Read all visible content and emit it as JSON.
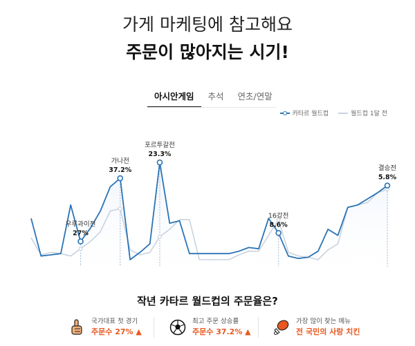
{
  "headline": {
    "line1": "가게 마케팅에 참고해요",
    "line2": "주문이 많아지는 시기!"
  },
  "tabs": [
    {
      "label": "아시안게임",
      "active": true
    },
    {
      "label": "추석",
      "active": false
    },
    {
      "label": "연초/연말",
      "active": false
    }
  ],
  "legend": {
    "current": "카타르 월드컵",
    "previous": "월드컵 1달 전"
  },
  "colors": {
    "current_line": "#2a73b5",
    "previous_line": "#c9d3e0",
    "area_fill": "#eef3fb",
    "accent": "#e8581f"
  },
  "chart_data": {
    "type": "line",
    "x": [
      1,
      2,
      3,
      4,
      5,
      6,
      7,
      8,
      9,
      10,
      11,
      12,
      13,
      14,
      15,
      16,
      17,
      18,
      19,
      20,
      21,
      22,
      23,
      24,
      25,
      26,
      27,
      28,
      29,
      30,
      31,
      32,
      33,
      34,
      35,
      36,
      37
    ],
    "series": [
      {
        "name": "카타르 월드컵",
        "values": [
          34,
          3,
          4,
          5,
          45,
          15,
          26,
          40,
          60,
          67,
          0,
          6,
          13,
          80,
          30,
          32,
          5,
          5,
          5,
          5,
          5,
          7,
          10,
          9,
          34,
          22,
          3,
          1,
          2,
          7,
          25,
          20,
          43,
          45,
          50,
          55,
          61
        ]
      },
      {
        "name": "월드컵 1달 전",
        "values": [
          18,
          4,
          6,
          5,
          3,
          9,
          15,
          23,
          40,
          42,
          8,
          4,
          6,
          19,
          25,
          33,
          33,
          0,
          0,
          0,
          0,
          4,
          7,
          7,
          20,
          33,
          6,
          3,
          2,
          0,
          8,
          13,
          43,
          45,
          47,
          55,
          58
        ]
      }
    ],
    "peaks": [
      {
        "index": 5,
        "label": "우루과이전",
        "value": "27%"
      },
      {
        "index": 9,
        "label": "가나전",
        "value": "37.2%"
      },
      {
        "index": 13,
        "label": "포르투갈전",
        "value": "23.3%"
      },
      {
        "index": 25,
        "label": "16강전",
        "value": "8.6%"
      },
      {
        "index": 36,
        "label": "결승전",
        "value": "5.8%"
      }
    ]
  },
  "section_title": "작년 카타르 월드컵의 주문율은?",
  "stats": [
    {
      "icon": "hand-icon",
      "label": "국가대표 첫 경기",
      "value": "주문수 27% ▲"
    },
    {
      "icon": "soccer-ball-icon",
      "label": "최고 주문 상승률",
      "value": "주문수 37.2% ▲"
    },
    {
      "icon": "chicken-leg-icon",
      "label": "가장 많이 찾는 메뉴",
      "value": "전 국민의 사랑 치킨"
    }
  ]
}
